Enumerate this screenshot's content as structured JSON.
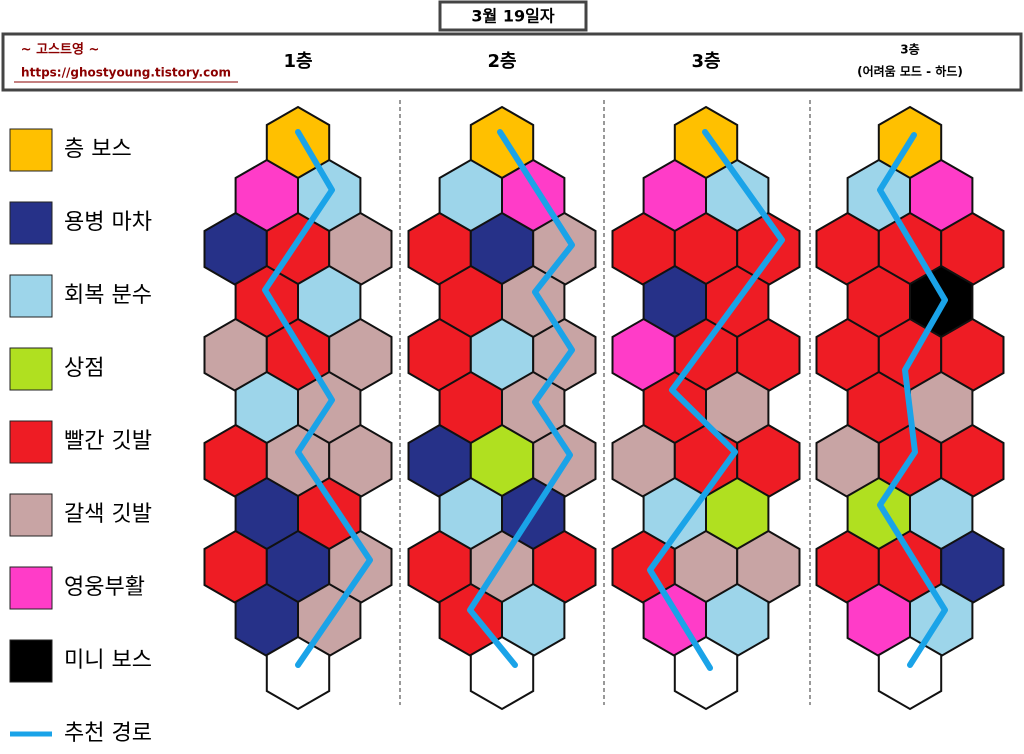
{
  "header": {
    "title": "3월 19일자",
    "blog": "~ 고스트영 ~",
    "url": "https://ghostyoung.tistory.com"
  },
  "legend": [
    {
      "label": "층 보스",
      "color": "#ffc000"
    },
    {
      "label": "용병 마차",
      "color": "#263188"
    },
    {
      "label": "회복 분수",
      "color": "#9dd5ea"
    },
    {
      "label": "상점",
      "color": "#b0e020"
    },
    {
      "label": "빨간 깃발",
      "color": "#ee1c24"
    },
    {
      "label": "갈색 깃발",
      "color": "#c8a4a4"
    },
    {
      "label": "영웅부활",
      "color": "#ff3cc8"
    },
    {
      "label": "미니 보스",
      "color": "#000000"
    },
    {
      "label": "추천 경로",
      "color": "#1aa3e8"
    }
  ],
  "columns": [
    {
      "label": "1층",
      "rows": [
        [
          "#ffc000"
        ],
        [
          "#ff3cc8",
          "#9dd5ea"
        ],
        [
          "#263188",
          "#ee1c24",
          "#c8a4a4"
        ],
        [
          "#ee1c24",
          "#9dd5ea"
        ],
        [
          "#c8a4a4",
          "#ee1c24",
          "#c8a4a4"
        ],
        [
          "#9dd5ea",
          "#c8a4a4"
        ],
        [
          "#ee1c24",
          "#c8a4a4",
          "#c8a4a4"
        ],
        [
          "#263188",
          "#ee1c24"
        ],
        [
          "#ee1c24",
          "#263188",
          "#c8a4a4"
        ],
        [
          "#263188",
          "#c8a4a4"
        ],
        [
          "#ffffff"
        ]
      ]
    },
    {
      "label": "2층",
      "rows": [
        [
          "#ffc000"
        ],
        [
          "#9dd5ea",
          "#ff3cc8"
        ],
        [
          "#ee1c24",
          "#263188",
          "#c8a4a4"
        ],
        [
          "#ee1c24",
          "#c8a4a4"
        ],
        [
          "#ee1c24",
          "#9dd5ea",
          "#c8a4a4"
        ],
        [
          "#ee1c24",
          "#c8a4a4"
        ],
        [
          "#263188",
          "#b0e020",
          "#c8a4a4"
        ],
        [
          "#9dd5ea",
          "#263188"
        ],
        [
          "#ee1c24",
          "#c8a4a4",
          "#ee1c24"
        ],
        [
          "#ee1c24",
          "#9dd5ea"
        ],
        [
          "#ffffff"
        ]
      ]
    },
    {
      "label": "3층",
      "rows": [
        [
          "#ffc000"
        ],
        [
          "#ff3cc8",
          "#9dd5ea"
        ],
        [
          "#ee1c24",
          "#ee1c24",
          "#ee1c24"
        ],
        [
          "#263188",
          "#ee1c24"
        ],
        [
          "#ff3cc8",
          "#ee1c24",
          "#ee1c24"
        ],
        [
          "#ee1c24",
          "#c8a4a4"
        ],
        [
          "#c8a4a4",
          "#ee1c24",
          "#ee1c24"
        ],
        [
          "#9dd5ea",
          "#b0e020"
        ],
        [
          "#ee1c24",
          "#c8a4a4",
          "#c8a4a4"
        ],
        [
          "#ff3cc8",
          "#9dd5ea"
        ],
        [
          "#ffffff"
        ]
      ]
    },
    {
      "label": "3층",
      "sublabel": "(어려움 모드 - 하드)",
      "rows": [
        [
          "#ffc000"
        ],
        [
          "#9dd5ea",
          "#ff3cc8"
        ],
        [
          "#ee1c24",
          "#ee1c24",
          "#ee1c24"
        ],
        [
          "#ee1c24",
          "#000000"
        ],
        [
          "#ee1c24",
          "#ee1c24",
          "#ee1c24"
        ],
        [
          "#ee1c24",
          "#c8a4a4"
        ],
        [
          "#c8a4a4",
          "#ee1c24",
          "#ee1c24"
        ],
        [
          "#b0e020",
          "#9dd5ea"
        ],
        [
          "#ee1c24",
          "#ee1c24",
          "#263188"
        ],
        [
          "#ff3cc8",
          "#9dd5ea"
        ],
        [
          "#ffffff"
        ]
      ]
    }
  ]
}
